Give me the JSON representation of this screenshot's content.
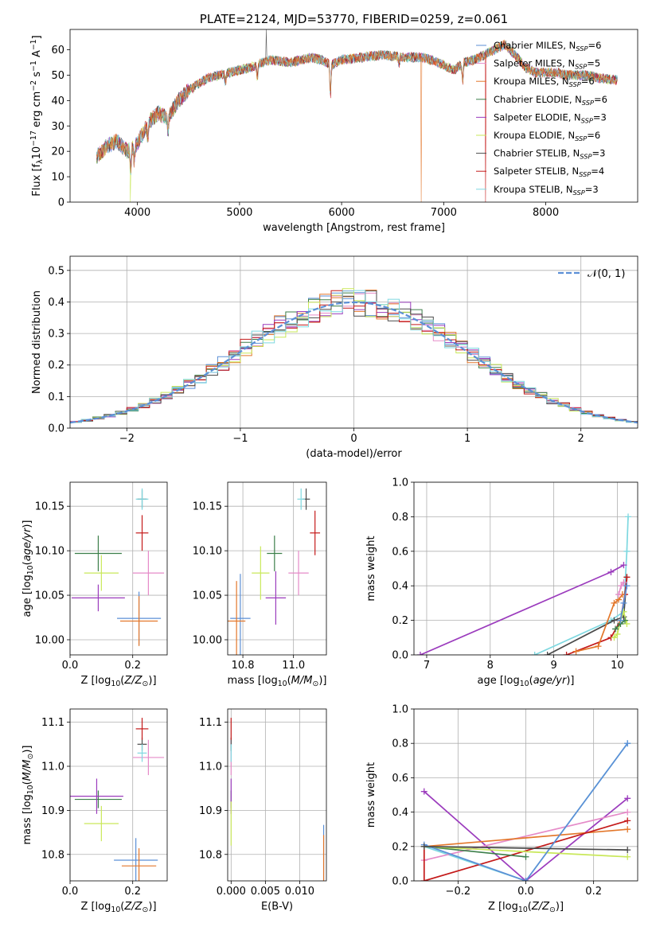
{
  "colors": {
    "chabrier_miles": "#5b8fd6",
    "salpeter_miles": "#e58bc8",
    "kroupa_miles": "#e3772b",
    "chabrier_elodie": "#3c7f4a",
    "salpeter_elodie": "#9b3bbd",
    "kroupa_elodie": "#c9e85a",
    "chabrier_stelib": "#4a4a4a",
    "salpeter_stelib": "#c41a1a",
    "kroupa_stelib": "#7ed8e0",
    "gaussian": "#5b8fd6",
    "grid": "#b0b0b0"
  },
  "chart_data": [
    {
      "id": "spectrum",
      "type": "line",
      "title": "PLATE=2124, MJD=53770, FIBERID=0259, z=0.061",
      "xlabel": "wavelength [Angstrom, rest frame]",
      "ylabel": "Flux [f$_\\lambda$10$^{-17}$ erg cm$^{-2}$ s$^{-1}$ A$^{-1}$]",
      "xlim": [
        3340,
        8900
      ],
      "ylim": [
        0,
        68
      ],
      "xticks": [
        4000,
        5000,
        6000,
        7000,
        8000
      ],
      "yticks": [
        0,
        10,
        20,
        30,
        40,
        50,
        60
      ],
      "grid": false,
      "legend_position": "top-right",
      "continuum": {
        "wavelength": [
          3600,
          3700,
          3800,
          3900,
          4000,
          4100,
          4200,
          4300,
          4400,
          4500,
          4700,
          4900,
          5100,
          5300,
          5500,
          5700,
          5800,
          5900,
          6000,
          6200,
          6400,
          6600,
          6800,
          7000,
          7100,
          7200,
          7300,
          7400,
          7500,
          7600,
          7700,
          7800,
          7900,
          8000,
          8100,
          8200,
          8300,
          8400,
          8500,
          8700
        ],
        "flux": [
          18,
          22,
          24,
          20,
          23,
          31,
          35,
          33,
          40,
          44,
          49,
          51,
          53,
          56,
          55,
          57,
          56,
          54,
          56,
          57,
          58,
          57,
          57,
          54,
          52,
          55,
          56,
          58,
          60,
          62,
          58,
          53,
          51,
          51,
          51,
          50,
          50,
          50,
          49,
          48
        ]
      },
      "series": [
        {
          "name": "Chabrier MILES, N$_{SSP}$=6"
        },
        {
          "name": "Salpeter MILES, N$_{SSP}$=5"
        },
        {
          "name": "Kroupa MILES, N$_{SSP}$=6"
        },
        {
          "name": "Chabrier ELODIE, N$_{SSP}$=6"
        },
        {
          "name": "Salpeter ELODIE, N$_{SSP}$=3"
        },
        {
          "name": "Kroupa ELODIE, N$_{SSP}$=6"
        },
        {
          "name": "Chabrier STELIB, N$_{SSP}$=3"
        },
        {
          "name": "Salpeter STELIB, N$_{SSP}$=4"
        },
        {
          "name": "Kroupa STELIB, N$_{SSP}$=3"
        }
      ]
    },
    {
      "id": "residuals",
      "type": "histogram",
      "xlabel": "(data-model)/error",
      "ylabel": "Normed distribution",
      "xlim": [
        -2.5,
        2.5
      ],
      "ylim": [
        0,
        0.545
      ],
      "xticks": [
        -2,
        -1,
        0,
        1,
        2
      ],
      "yticks": [
        0.0,
        0.1,
        0.2,
        0.3,
        0.4,
        0.5
      ],
      "grid": true,
      "legend_position": "top-right",
      "legend": "$\\mathcal{N}(0, 1)$",
      "bin_width": 0.1,
      "bin_start": -2.5
    },
    {
      "id": "age-vs-Z",
      "type": "errorbar",
      "xlabel": "Z [log$_{10}$($Z/Z_\\odot$)]",
      "ylabel": "age  [log$_{10}$($age/yr$)]",
      "xlim": [
        0.0,
        0.31
      ],
      "ylim": [
        9.983,
        10.177
      ],
      "xticks": [
        0.0,
        0.2
      ],
      "yticks": [
        10.0,
        10.05,
        10.1,
        10.15
      ],
      "grid": true,
      "points": [
        {
          "key": "chabrier_miles",
          "x": 0.22,
          "xerr": 0.07,
          "y": 10.024,
          "yerr": 0.03
        },
        {
          "key": "salpeter_miles",
          "x": 0.25,
          "xerr": 0.05,
          "y": 10.075,
          "yerr": 0.025
        },
        {
          "key": "kroupa_miles",
          "x": 0.22,
          "xerr": 0.06,
          "y": 10.021,
          "yerr": 0.028
        },
        {
          "key": "chabrier_elodie",
          "x": 0.09,
          "xerr": 0.075,
          "y": 10.097,
          "yerr": 0.02
        },
        {
          "key": "salpeter_elodie",
          "x": 0.09,
          "xerr": 0.085,
          "y": 10.047,
          "yerr": 0.015
        },
        {
          "key": "kroupa_elodie",
          "x": 0.1,
          "xerr": 0.055,
          "y": 10.075,
          "yerr": 0.02
        },
        {
          "key": "chabrier_stelib",
          "x": 0.23,
          "xerr": 0.015,
          "y": 10.158,
          "yerr": 0.01
        },
        {
          "key": "salpeter_stelib",
          "x": 0.23,
          "xerr": 0.02,
          "y": 10.12,
          "yerr": 0.02
        },
        {
          "key": "kroupa_stelib",
          "x": 0.23,
          "xerr": 0.02,
          "y": 10.158,
          "yerr": 0.012
        }
      ]
    },
    {
      "id": "age-vs-mass",
      "type": "errorbar",
      "xlabel": "mass [log$_{10}$($M/M_\\odot$)]",
      "ylabel": "",
      "xlim": [
        10.74,
        11.13
      ],
      "ylim": [
        9.983,
        10.177
      ],
      "xticks": [
        10.8,
        11.0
      ],
      "yticks": [
        10.0,
        10.05,
        10.1,
        10.15
      ],
      "grid": true,
      "points": [
        {
          "key": "chabrier_miles",
          "x": 10.79,
          "xerr": 0.04,
          "y": 10.024,
          "yerr": 0.05
        },
        {
          "key": "salpeter_miles",
          "x": 11.02,
          "xerr": 0.04,
          "y": 10.075,
          "yerr": 0.025
        },
        {
          "key": "kroupa_miles",
          "x": 10.775,
          "xerr": 0.035,
          "y": 10.021,
          "yerr": 0.045
        },
        {
          "key": "chabrier_elodie",
          "x": 10.925,
          "xerr": 0.03,
          "y": 10.097,
          "yerr": 0.02
        },
        {
          "key": "salpeter_elodie",
          "x": 10.93,
          "xerr": 0.04,
          "y": 10.047,
          "yerr": 0.03
        },
        {
          "key": "kroupa_elodie",
          "x": 10.87,
          "xerr": 0.035,
          "y": 10.075,
          "yerr": 0.03
        },
        {
          "key": "chabrier_stelib",
          "x": 11.05,
          "xerr": 0.015,
          "y": 10.158,
          "yerr": 0.012
        },
        {
          "key": "salpeter_stelib",
          "x": 11.085,
          "xerr": 0.02,
          "y": 10.12,
          "yerr": 0.025
        },
        {
          "key": "kroupa_stelib",
          "x": 11.03,
          "xerr": 0.015,
          "y": 10.158,
          "yerr": 0.012
        }
      ]
    },
    {
      "id": "weight-vs-age",
      "type": "line",
      "xlabel": "age  [log$_{10}$($age/yr$)]",
      "ylabel": "mass weight",
      "xlim": [
        6.8,
        10.32
      ],
      "ylim": [
        0,
        1.0
      ],
      "xticks": [
        7,
        8,
        9,
        10
      ],
      "yticks": [
        0.0,
        0.2,
        0.4,
        0.6,
        0.8,
        1.0
      ],
      "grid": true,
      "series": [
        {
          "key": "kroupa_stelib",
          "x": [
            8.7,
            9.9,
            10.1,
            10.15,
            10.17
          ],
          "y": [
            0.0,
            0.2,
            0.25,
            0.6,
            0.8
          ]
        },
        {
          "key": "chabrier_stelib",
          "x": [
            8.9,
            9.95,
            10.1,
            10.15
          ],
          "y": [
            0.0,
            0.2,
            0.22,
            0.45
          ]
        },
        {
          "key": "salpeter_stelib",
          "x": [
            9.2,
            9.9,
            10.05,
            10.12,
            10.15
          ],
          "y": [
            0.0,
            0.1,
            0.2,
            0.35,
            0.45
          ]
        },
        {
          "key": "salpeter_elodie",
          "x": [
            6.9,
            9.9,
            10.1
          ],
          "y": [
            0.0,
            0.48,
            0.52
          ]
        },
        {
          "key": "kroupa_miles",
          "x": [
            9.35,
            9.7,
            9.95,
            10.02,
            10.08
          ],
          "y": [
            0.02,
            0.05,
            0.3,
            0.32,
            0.35
          ]
        },
        {
          "key": "kroupa_elodie",
          "x": [
            9.95,
            10.0,
            10.05,
            10.1,
            10.15
          ],
          "y": [
            0.1,
            0.12,
            0.2,
            0.25,
            0.18
          ]
        },
        {
          "key": "chabrier_elodie",
          "x": [
            9.97,
            10.05,
            10.12
          ],
          "y": [
            0.15,
            0.18,
            0.2
          ]
        },
        {
          "key": "salpeter_miles",
          "x": [
            10.02,
            10.06,
            10.1
          ],
          "y": [
            0.35,
            0.4,
            0.42
          ]
        },
        {
          "key": "chabrier_miles",
          "x": [
            10.05,
            10.1,
            10.15
          ],
          "y": [
            0.2,
            0.3,
            0.4
          ]
        }
      ]
    },
    {
      "id": "mass-vs-Z",
      "type": "errorbar",
      "xlabel": "Z [log$_{10}$($Z/Z_\\odot$)]",
      "ylabel": "mass [log$_{10}$($M/M_\\odot$)]",
      "xlim": [
        0.0,
        0.31
      ],
      "ylim": [
        10.74,
        11.13
      ],
      "xticks": [
        0.0,
        0.2
      ],
      "yticks": [
        10.8,
        10.9,
        11.0,
        11.1
      ],
      "grid": true,
      "points": [
        {
          "key": "chabrier_miles",
          "x": 0.21,
          "xerr": 0.07,
          "y": 10.787,
          "yerr": 0.05
        },
        {
          "key": "salpeter_miles",
          "x": 0.25,
          "xerr": 0.05,
          "y": 11.02,
          "yerr": 0.04
        },
        {
          "key": "kroupa_miles",
          "x": 0.22,
          "xerr": 0.055,
          "y": 10.774,
          "yerr": 0.04
        },
        {
          "key": "chabrier_elodie",
          "x": 0.09,
          "xerr": 0.075,
          "y": 10.925,
          "yerr": 0.02
        },
        {
          "key": "salpeter_elodie",
          "x": 0.085,
          "xerr": 0.085,
          "y": 10.932,
          "yerr": 0.04
        },
        {
          "key": "kroupa_elodie",
          "x": 0.1,
          "xerr": 0.055,
          "y": 10.87,
          "yerr": 0.04
        },
        {
          "key": "chabrier_stelib",
          "x": 0.23,
          "xerr": 0.015,
          "y": 11.05,
          "yerr": 0.015
        },
        {
          "key": "salpeter_stelib",
          "x": 0.23,
          "xerr": 0.02,
          "y": 11.085,
          "yerr": 0.025
        },
        {
          "key": "kroupa_stelib",
          "x": 0.23,
          "xerr": 0.015,
          "y": 11.03,
          "yerr": 0.02
        }
      ]
    },
    {
      "id": "mass-vs-ebv",
      "type": "errorbar",
      "xlabel": "E(B-V)",
      "ylabel": "",
      "xlim": [
        -0.0005,
        0.0139
      ],
      "ylim": [
        10.74,
        11.13
      ],
      "xticks": [
        0.0,
        0.005,
        0.01
      ],
      "xticklabels": [
        "0.000",
        "0.005",
        "0.010"
      ],
      "yticks": [
        10.8,
        10.9,
        11.0,
        11.1
      ],
      "grid": true,
      "points": [
        {
          "key": "chabrier_miles",
          "x": 0.0135,
          "xerr": 0,
          "y": 10.787,
          "yerr": 0.08
        },
        {
          "key": "salpeter_miles",
          "x": 0.0,
          "xerr": 0,
          "y": 11.02,
          "yerr": 0.04
        },
        {
          "key": "kroupa_miles",
          "x": 0.0135,
          "xerr": 0,
          "y": 10.774,
          "yerr": 0.07
        },
        {
          "key": "chabrier_elodie",
          "x": 0.0,
          "xerr": 0,
          "y": 10.925,
          "yerr": 0.02
        },
        {
          "key": "salpeter_elodie",
          "x": 0.0,
          "xerr": 0,
          "y": 10.932,
          "yerr": 0.04
        },
        {
          "key": "kroupa_elodie",
          "x": 0.0,
          "xerr": 0,
          "y": 10.87,
          "yerr": 0.05
        },
        {
          "key": "chabrier_stelib",
          "x": 0.0,
          "xerr": 0,
          "y": 11.05,
          "yerr": 0.015
        },
        {
          "key": "salpeter_stelib",
          "x": 0.0,
          "xerr": 0,
          "y": 11.085,
          "yerr": 0.025
        },
        {
          "key": "kroupa_stelib",
          "x": 0.0,
          "xerr": 0,
          "y": 11.03,
          "yerr": 0.02
        }
      ]
    },
    {
      "id": "weight-vs-Z",
      "type": "line",
      "xlabel": "Z [log$_{10}$($Z/Z_\\odot$)]",
      "ylabel": "mass weight",
      "xlim": [
        -0.33,
        0.33
      ],
      "ylim": [
        0,
        1.0
      ],
      "xticks": [
        -0.2,
        0.0,
        0.2
      ],
      "yticks": [
        0.0,
        0.2,
        0.4,
        0.6,
        0.8,
        1.0
      ],
      "grid": true,
      "series": [
        {
          "key": "kroupa_stelib",
          "x": [
            -0.3,
            0.0,
            0.3
          ],
          "y": [
            0.2,
            0.0,
            0.8
          ]
        },
        {
          "key": "salpeter_elodie",
          "x": [
            -0.3,
            0.0,
            0.3
          ],
          "y": [
            0.52,
            0.0,
            0.48
          ]
        },
        {
          "key": "salpeter_miles",
          "x": [
            -0.3,
            0.3
          ],
          "y": [
            0.12,
            0.4
          ]
        },
        {
          "key": "kroupa_miles",
          "x": [
            -0.3,
            0.3
          ],
          "y": [
            0.2,
            0.3
          ]
        },
        {
          "key": "salpeter_stelib",
          "x": [
            -0.3,
            -0.3,
            0.3
          ],
          "y": [
            0.2,
            0.0,
            0.35
          ]
        },
        {
          "key": "chabrier_elodie",
          "x": [
            -0.3,
            0.0
          ],
          "y": [
            0.2,
            0.14
          ]
        },
        {
          "key": "kroupa_elodie",
          "x": [
            -0.3,
            0.3
          ],
          "y": [
            0.2,
            0.14
          ]
        },
        {
          "key": "chabrier_miles",
          "x": [
            -0.3,
            0.0,
            0.3
          ],
          "y": [
            0.21,
            0.0,
            0.8
          ]
        },
        {
          "key": "chabrier_stelib",
          "x": [
            -0.3,
            0.3
          ],
          "y": [
            0.2,
            0.18
          ]
        }
      ]
    }
  ]
}
